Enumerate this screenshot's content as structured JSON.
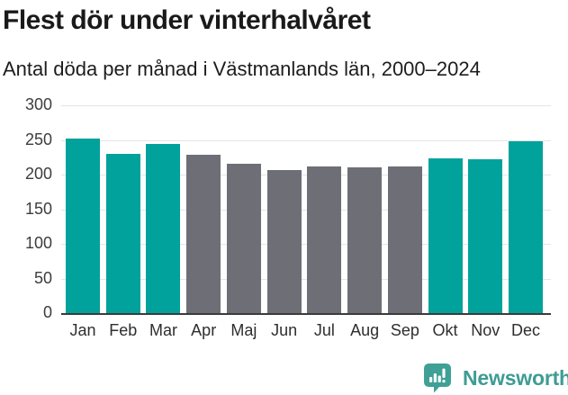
{
  "header": {
    "title": "Flest dör under vinterhalvåret",
    "subtitle": "Antal döda per månad i Västmanlands län, 2000–2024"
  },
  "chart_data": {
    "type": "bar",
    "title": "Flest dör under vinterhalvåret",
    "subtitle": "Antal döda per månad i Västmanlands län, 2000–2024",
    "categories": [
      "Jan",
      "Feb",
      "Mar",
      "Apr",
      "Maj",
      "Jun",
      "Jul",
      "Aug",
      "Sep",
      "Okt",
      "Nov",
      "Dec"
    ],
    "values": [
      252,
      230,
      244,
      228,
      215,
      207,
      212,
      211,
      212,
      224,
      222,
      248
    ],
    "bar_colors": [
      "#00A29B",
      "#00A29B",
      "#00A29B",
      "#6E6E76",
      "#6E6E76",
      "#6E6E76",
      "#6E6E76",
      "#6E6E76",
      "#6E6E76",
      "#00A29B",
      "#00A29B",
      "#00A29B"
    ],
    "xlabel": "",
    "ylabel": "",
    "ylim": [
      0,
      300
    ],
    "yticks": [
      0,
      50,
      100,
      150,
      200,
      250,
      300
    ],
    "grid": "horizontal",
    "legend": "none",
    "colors": {
      "highlight_teal": "#00A29B",
      "neutral_gray": "#6E6E76",
      "gridline": "#E4E4E4",
      "axis_line": "#3B3B3B"
    }
  },
  "footer": {
    "brand": "Newsworthy",
    "brand_color": "#3E9C94",
    "logo_icon": "bar-chart-speech-bubble",
    "logo_icon_color": "#3FA096"
  }
}
